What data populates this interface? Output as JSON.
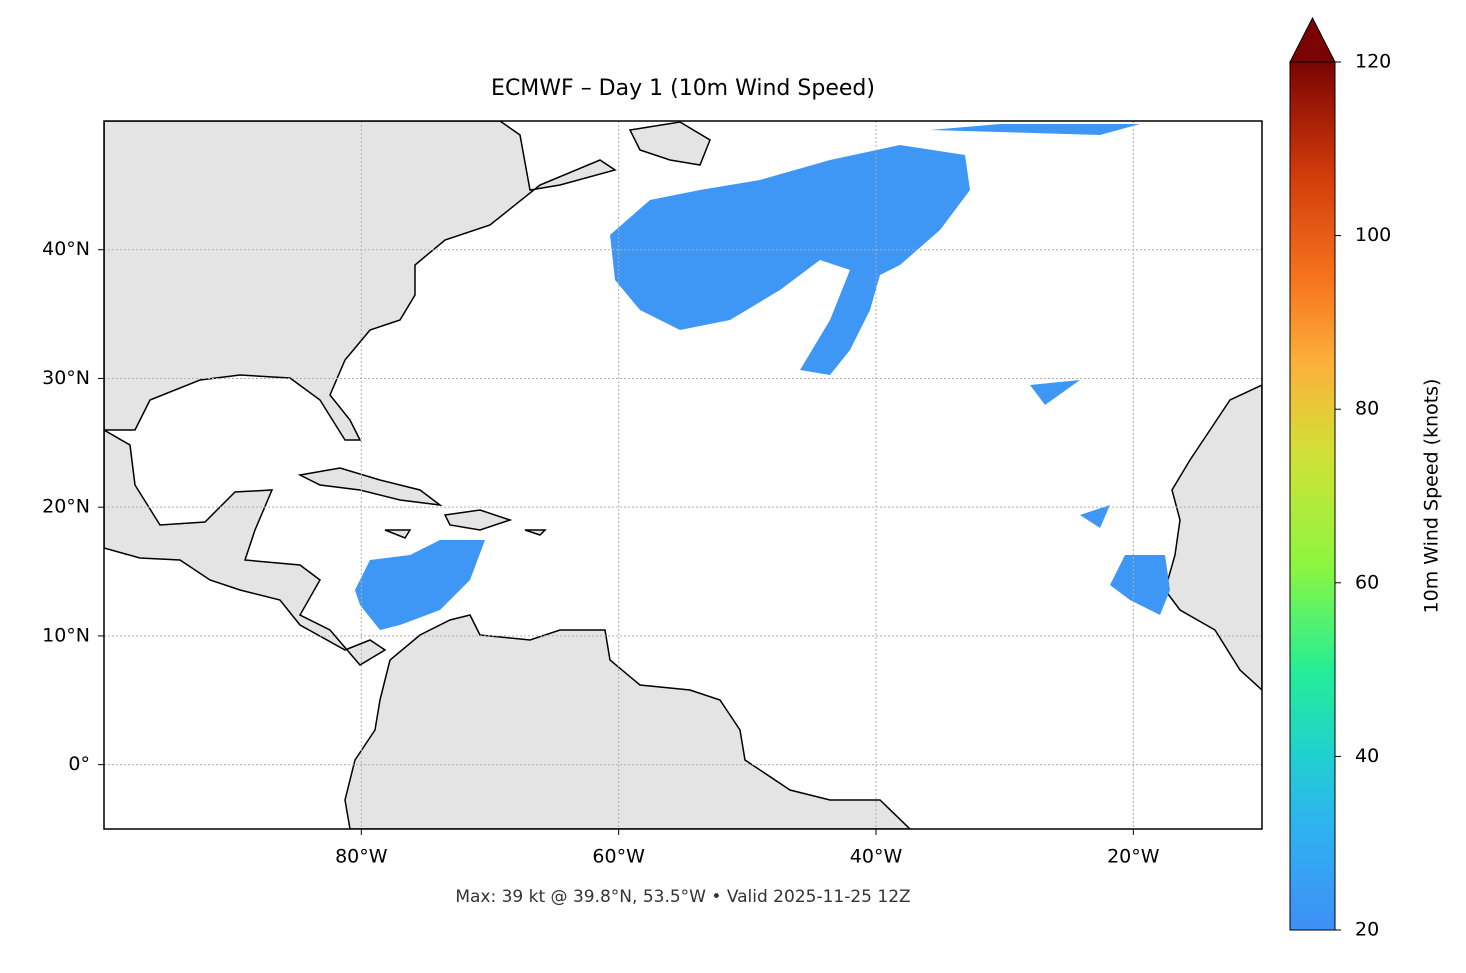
{
  "map": {
    "title": "ECMWF – Day 1 (10m Wind Speed)",
    "caption": "Max: 39 kt @ 39.8°N, 53.5°W • Valid 2025-11-25 12Z",
    "lon_range": [
      -100,
      -10
    ],
    "lat_range": [
      -5,
      50
    ],
    "lon_ticks": [
      {
        "value": -80,
        "label": "80°W"
      },
      {
        "value": -60,
        "label": "60°W"
      },
      {
        "value": -40,
        "label": "40°W"
      },
      {
        "value": -20,
        "label": "20°W"
      }
    ],
    "lat_ticks": [
      {
        "value": 0,
        "label": "0°"
      },
      {
        "value": 10,
        "label": "10°N"
      },
      {
        "value": 20,
        "label": "20°N"
      },
      {
        "value": 30,
        "label": "30°N"
      },
      {
        "value": 40,
        "label": "40°N"
      }
    ],
    "colorbar": {
      "label": "10m Wind Speed (knots)",
      "range": [
        20,
        120
      ],
      "ticks": [
        20,
        40,
        60,
        80,
        100,
        120
      ]
    }
  }
}
